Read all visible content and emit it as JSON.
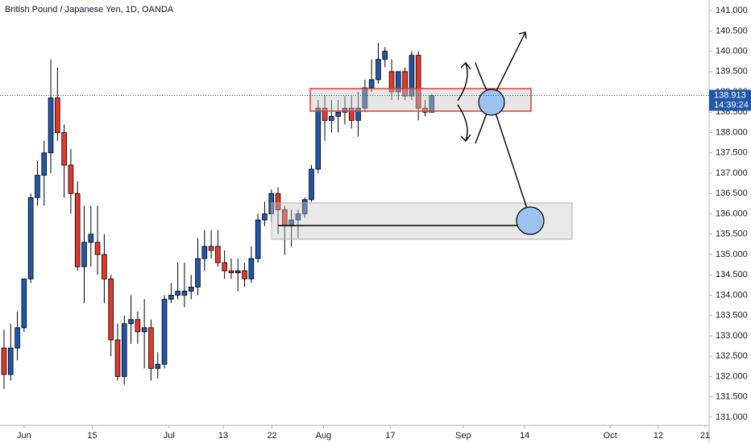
{
  "chart_data": {
    "type": "candlestick",
    "title": "British Pound / Japanese Yen, 1D, OANDA",
    "open": [
      132.7,
      132.05,
      132.7,
      133.2,
      134.4,
      136.4,
      136.95,
      137.5,
      138.85,
      138.0,
      137.2,
      136.5,
      134.7,
      135.3,
      135.3,
      135.0,
      134.4,
      132.9,
      132.0,
      133.3,
      133.4,
      133.1,
      133.2,
      132.2,
      132.3,
      133.9,
      134.0,
      134.0,
      134.1,
      134.2,
      134.9,
      135.2,
      135.2,
      134.8,
      134.6,
      134.55,
      134.6,
      134.4,
      134.9,
      135.85,
      136.0,
      136.5,
      136.1,
      135.7,
      135.85,
      136.0,
      136.35,
      137.1,
      138.6,
      138.3,
      138.4,
      138.5,
      138.6,
      138.3,
      138.6,
      139.1,
      139.3,
      139.8,
      139.5,
      139.0,
      139.5,
      138.9,
      139.9,
      138.6,
      138.5
    ],
    "high": [
      133.15,
      133.3,
      133.6,
      134.4,
      136.5,
      137.3,
      137.8,
      139.8,
      139.6,
      138.2,
      137.6,
      136.8,
      136.2,
      136.2,
      136.2,
      135.5,
      134.5,
      133.3,
      133.5,
      134.0,
      133.6,
      133.9,
      133.4,
      132.6,
      134.0,
      134.3,
      134.8,
      134.8,
      134.5,
      135.4,
      135.6,
      135.6,
      135.6,
      135.1,
      134.9,
      134.9,
      134.8,
      135.2,
      136.0,
      136.3,
      136.6,
      136.65,
      136.2,
      136.1,
      136.1,
      136.4,
      137.2,
      138.8,
      138.9,
      138.8,
      138.8,
      138.9,
      138.9,
      139.0,
      139.3,
      139.8,
      140.2,
      140.1,
      139.8,
      139.5,
      139.6,
      140.0,
      140.0,
      138.8,
      138.95
    ],
    "low": [
      131.7,
      131.9,
      132.4,
      133.1,
      134.3,
      136.2,
      136.2,
      137.0,
      137.8,
      136.4,
      136.0,
      134.6,
      133.8,
      134.7,
      134.5,
      133.8,
      132.5,
      131.9,
      131.8,
      132.8,
      132.8,
      132.2,
      131.9,
      131.95,
      132.2,
      133.8,
      133.9,
      133.7,
      133.9,
      134.0,
      134.6,
      134.9,
      134.7,
      134.4,
      134.4,
      134.1,
      134.2,
      134.3,
      134.8,
      135.7,
      135.8,
      135.5,
      135.0,
      135.2,
      135.4,
      135.9,
      136.3,
      137.0,
      137.8,
      138.0,
      138.0,
      138.2,
      138.1,
      137.9,
      138.5,
      139.0,
      139.2,
      139.6,
      138.8,
      138.8,
      138.8,
      138.8,
      138.3,
      138.4,
      138.5
    ],
    "close": [
      132.05,
      132.7,
      133.2,
      134.4,
      136.4,
      136.95,
      137.5,
      138.85,
      138.0,
      137.2,
      136.5,
      134.7,
      135.3,
      135.5,
      135.0,
      134.4,
      132.9,
      132.0,
      133.3,
      133.4,
      133.1,
      133.2,
      132.2,
      132.3,
      133.9,
      134.0,
      134.1,
      134.1,
      134.2,
      134.9,
      135.2,
      135.1,
      134.8,
      134.6,
      134.55,
      134.6,
      134.4,
      134.9,
      135.85,
      136.0,
      136.5,
      136.1,
      135.7,
      135.85,
      136.0,
      136.35,
      137.1,
      138.6,
      138.3,
      138.4,
      138.5,
      138.6,
      138.3,
      138.6,
      139.1,
      139.3,
      139.8,
      140.0,
      139.0,
      139.5,
      138.9,
      139.9,
      138.6,
      138.5,
      138.91
    ],
    "up_color": "#2157a8",
    "down_color": "#e5382c",
    "xlim": [
      -0.6,
      105.5
    ],
    "xticks": [
      {
        "value": 3.0,
        "label": "Jun"
      },
      {
        "value": 13.2,
        "label": "15"
      },
      {
        "value": 24.7,
        "label": "Jul"
      },
      {
        "value": 32.8,
        "label": "13"
      },
      {
        "value": 40.1,
        "label": "22"
      },
      {
        "value": 47.8,
        "label": "Aug"
      },
      {
        "value": 57.8,
        "label": "17"
      },
      {
        "value": 68.7,
        "label": "Sep"
      },
      {
        "value": 77.9,
        "label": "14"
      },
      {
        "value": 90.7,
        "label": "Oct"
      },
      {
        "value": 97.9,
        "label": "12"
      },
      {
        "value": 104.9,
        "label": "21"
      }
    ],
    "ylim": [
      130.8,
      141.26
    ],
    "yticks": [
      {
        "value": 131,
        "label": "131.000"
      },
      {
        "value": 131.5,
        "label": "131.500"
      },
      {
        "value": 132,
        "label": "132.000"
      },
      {
        "value": 132.5,
        "label": "132.500"
      },
      {
        "value": 133,
        "label": "133.000"
      },
      {
        "value": 133.5,
        "label": "133.500"
      },
      {
        "value": 134,
        "label": "134.000"
      },
      {
        "value": 134.5,
        "label": "134.500"
      },
      {
        "value": 135,
        "label": "135.000"
      },
      {
        "value": 135.5,
        "label": "135.500"
      },
      {
        "value": 136,
        "label": "136.000"
      },
      {
        "value": 136.5,
        "label": "136.500"
      },
      {
        "value": 137,
        "label": "137.000"
      },
      {
        "value": 137.5,
        "label": "137.500"
      },
      {
        "value": 138,
        "label": "138.000"
      },
      {
        "value": 138.5,
        "label": "138.500"
      },
      {
        "value": 139,
        "label": "139.000"
      },
      {
        "value": 139.5,
        "label": "139.500"
      },
      {
        "value": 140,
        "label": "140.000"
      },
      {
        "value": 140.5,
        "label": "140.500"
      },
      {
        "value": 141,
        "label": "141.000"
      }
    ],
    "last_price": 138.913,
    "countdown": "14:39:24",
    "price_line_color": "#2157a8"
  }
}
